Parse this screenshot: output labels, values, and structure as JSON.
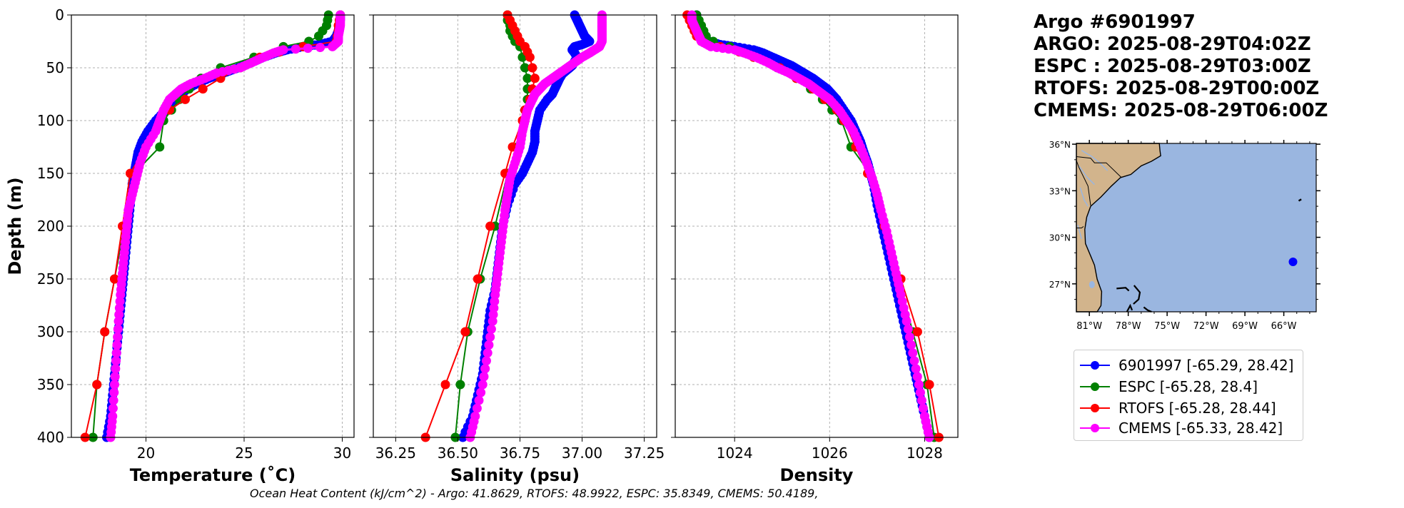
{
  "title_lines": [
    "Argo #6901997",
    "ARGO: 2025-08-29T04:02Z",
    "ESPC : 2025-08-29T03:00Z",
    "RTOFS: 2025-08-29T00:00Z",
    "CMEMS: 2025-08-29T06:00Z"
  ],
  "footer": "Ocean Heat Content (kJ/cm^2) - Argo: 41.8629,  RTOFS: 48.9922,  ESPC: 35.8349,  CMEMS: 50.4189,",
  "colors": {
    "argo": "#0000ff",
    "espc": "#008000",
    "rtofs": "#ff0000",
    "cmems": "#ff00ff",
    "ocean": "#9ab6e0",
    "land": "#d2b48c"
  },
  "legend": [
    {
      "label": "6901997 [-65.29, 28.42]",
      "color": "#0000ff"
    },
    {
      "label": "ESPC [-65.28, 28.4]",
      "color": "#008000"
    },
    {
      "label": "RTOFS [-65.28, 28.44]",
      "color": "#ff0000"
    },
    {
      "label": "CMEMS [-65.33, 28.42]",
      "color": "#ff00ff"
    }
  ],
  "map": {
    "lat_labels": [
      "36°N",
      "33°N",
      "30°N",
      "27°N"
    ],
    "lat_values": [
      36,
      33,
      30,
      27
    ],
    "lon_labels": [
      "81°W",
      "78°W",
      "75°W",
      "72°W",
      "69°W",
      "66°W"
    ],
    "lon_values": [
      -81,
      -78,
      -75,
      -72,
      -69,
      -66
    ],
    "extent": {
      "lon_min": -82,
      "lon_max": -63.5,
      "lat_min": 25.2,
      "lat_max": 36.05
    },
    "float_position": {
      "lon": -65.29,
      "lat": 28.42
    }
  },
  "chart_data": [
    {
      "type": "line",
      "name": "temperature",
      "xlabel": "Temperature (˚C)",
      "ylabel": "Depth (m)",
      "xlim": [
        16.2,
        30.6
      ],
      "ylim": [
        400,
        0
      ],
      "x_ticks": [
        20,
        25,
        30
      ],
      "x_tick_labels": [
        "20",
        "25",
        "30"
      ],
      "y_ticks": [
        0,
        50,
        100,
        150,
        200,
        250,
        300,
        350,
        400
      ],
      "y_tick_labels": [
        "0",
        "50",
        "100",
        "150",
        "200",
        "250",
        "300",
        "350",
        "400"
      ],
      "grid": true,
      "series": [
        {
          "name": "argo",
          "dense": true,
          "depth": [
            0,
            5,
            10,
            15,
            20,
            25,
            28,
            30,
            33,
            36,
            40,
            44,
            48,
            52,
            56,
            60,
            65,
            70,
            75,
            80,
            90,
            100,
            110,
            120,
            130,
            140,
            150,
            160,
            180,
            200,
            220,
            240,
            260,
            280,
            300,
            320,
            340,
            360,
            380,
            400
          ],
          "values": [
            29.9,
            29.9,
            29.85,
            29.8,
            29.7,
            29.5,
            28.8,
            28.0,
            27.2,
            26.6,
            26.0,
            25.5,
            25.0,
            24.4,
            23.8,
            23.2,
            22.6,
            22.1,
            21.8,
            21.5,
            21.0,
            20.5,
            20.1,
            19.8,
            19.6,
            19.5,
            19.4,
            19.3,
            19.2,
            19.1,
            19.0,
            18.9,
            18.8,
            18.7,
            18.6,
            18.5,
            18.4,
            18.3,
            18.2,
            18.0
          ]
        },
        {
          "name": "espc",
          "depth": [
            0,
            5,
            10,
            15,
            20,
            25,
            30,
            40,
            50,
            60,
            70,
            80,
            90,
            100,
            125,
            150,
            200,
            250,
            300,
            350,
            400
          ],
          "values": [
            29.3,
            29.25,
            29.2,
            29.0,
            28.8,
            28.3,
            27.0,
            25.5,
            23.8,
            22.8,
            22.2,
            21.7,
            21.3,
            20.9,
            20.7,
            19.4,
            18.9,
            18.4,
            17.9,
            17.5,
            17.3
          ]
        },
        {
          "name": "rtofs",
          "depth": [
            0,
            5,
            10,
            15,
            20,
            25,
            30,
            35,
            40,
            50,
            60,
            70,
            80,
            90,
            100,
            125,
            150,
            200,
            250,
            300,
            350,
            400
          ],
          "values": [
            29.9,
            29.85,
            29.8,
            29.8,
            29.75,
            29.7,
            28.0,
            26.8,
            25.8,
            24.8,
            23.8,
            22.9,
            22.0,
            21.2,
            20.7,
            20.0,
            19.2,
            18.8,
            18.4,
            17.9,
            17.5,
            16.9
          ]
        },
        {
          "name": "cmems",
          "dense": true,
          "depth": [
            0,
            5,
            10,
            15,
            20,
            25,
            30,
            33,
            36,
            40,
            45,
            50,
            55,
            60,
            65,
            70,
            75,
            80,
            90,
            100,
            110,
            125,
            140,
            155,
            170,
            185,
            205,
            225,
            245,
            265,
            290,
            320,
            350,
            380,
            400
          ],
          "values": [
            29.9,
            29.9,
            29.9,
            29.85,
            29.8,
            29.8,
            29.5,
            27.0,
            26.5,
            26.0,
            25.4,
            24.8,
            23.6,
            23.0,
            22.3,
            21.8,
            21.5,
            21.2,
            20.9,
            20.7,
            20.5,
            20.0,
            19.7,
            19.5,
            19.3,
            19.1,
            19.0,
            18.9,
            18.8,
            18.7,
            18.6,
            18.5,
            18.4,
            18.3,
            18.2
          ]
        }
      ]
    },
    {
      "type": "line",
      "name": "salinity",
      "xlabel": "Salinity (psu)",
      "ylabel": "",
      "xlim": [
        36.16,
        37.3
      ],
      "ylim": [
        400,
        0
      ],
      "x_ticks": [
        36.25,
        36.5,
        36.75,
        37.0,
        37.25
      ],
      "x_tick_labels": [
        "36.25",
        "36.50",
        "36.75",
        "37.00",
        "37.25"
      ],
      "grid": true,
      "series": [
        {
          "name": "argo",
          "dense": true,
          "depth": [
            0,
            5,
            10,
            15,
            20,
            25,
            28,
            30,
            33,
            36,
            40,
            44,
            48,
            52,
            56,
            60,
            65,
            70,
            75,
            80,
            90,
            100,
            110,
            120,
            130,
            140,
            150,
            160,
            180,
            200,
            220,
            240,
            260,
            280,
            300,
            320,
            340,
            360,
            380,
            400
          ],
          "values": [
            36.97,
            36.98,
            36.99,
            37.0,
            37.01,
            37.03,
            37.0,
            36.97,
            36.96,
            36.97,
            36.98,
            36.97,
            36.96,
            36.94,
            36.92,
            36.91,
            36.9,
            36.89,
            36.88,
            36.86,
            36.83,
            36.82,
            36.81,
            36.81,
            36.8,
            36.78,
            36.76,
            36.73,
            36.7,
            36.68,
            36.67,
            36.66,
            36.65,
            36.63,
            36.62,
            36.61,
            36.6,
            36.58,
            36.56,
            36.52
          ]
        },
        {
          "name": "espc",
          "depth": [
            0,
            5,
            10,
            15,
            20,
            25,
            30,
            40,
            50,
            60,
            70,
            80,
            90,
            100,
            125,
            150,
            200,
            250,
            300,
            350,
            400
          ],
          "values": [
            36.7,
            36.7,
            36.71,
            36.71,
            36.72,
            36.73,
            36.75,
            36.76,
            36.77,
            36.78,
            36.78,
            36.78,
            36.77,
            36.77,
            36.74,
            36.7,
            36.65,
            36.59,
            36.54,
            36.51,
            36.49
          ]
        },
        {
          "name": "rtofs",
          "depth": [
            0,
            5,
            10,
            15,
            20,
            25,
            30,
            35,
            40,
            50,
            60,
            70,
            80,
            90,
            100,
            125,
            150,
            200,
            250,
            300,
            350,
            400
          ],
          "values": [
            36.7,
            36.71,
            36.72,
            36.73,
            36.74,
            36.75,
            36.77,
            36.78,
            36.79,
            36.8,
            36.81,
            36.8,
            36.79,
            36.77,
            36.76,
            36.72,
            36.69,
            36.63,
            36.58,
            36.53,
            36.45,
            36.37
          ]
        },
        {
          "name": "cmems",
          "dense": true,
          "depth": [
            0,
            5,
            10,
            15,
            20,
            25,
            30,
            33,
            36,
            40,
            45,
            50,
            55,
            60,
            65,
            70,
            75,
            80,
            90,
            100,
            110,
            125,
            140,
            155,
            170,
            185,
            205,
            225,
            245,
            265,
            290,
            320,
            350,
            380,
            400
          ],
          "values": [
            37.08,
            37.08,
            37.08,
            37.08,
            37.08,
            37.08,
            37.07,
            37.05,
            37.03,
            37.0,
            36.97,
            36.94,
            36.91,
            36.88,
            36.85,
            36.83,
            36.81,
            36.8,
            36.78,
            36.77,
            36.76,
            36.75,
            36.73,
            36.71,
            36.7,
            36.69,
            36.68,
            36.67,
            36.66,
            36.65,
            36.64,
            36.62,
            36.6,
            36.57,
            36.55
          ]
        }
      ]
    },
    {
      "type": "line",
      "name": "density",
      "xlabel": "Density",
      "ylabel": "",
      "xlim": [
        1022.75,
        1028.7
      ],
      "ylim": [
        400,
        0
      ],
      "x_ticks": [
        1024,
        1026,
        1028
      ],
      "x_tick_labels": [
        "1024",
        "1026",
        "1028"
      ],
      "grid": true,
      "series": [
        {
          "name": "argo",
          "dense": true,
          "depth": [
            0,
            5,
            10,
            15,
            20,
            25,
            28,
            30,
            33,
            36,
            40,
            44,
            48,
            52,
            56,
            60,
            65,
            70,
            75,
            80,
            90,
            100,
            110,
            120,
            130,
            140,
            150,
            160,
            180,
            200,
            220,
            240,
            260,
            280,
            300,
            320,
            340,
            360,
            380,
            400
          ],
          "values": [
            1023.2,
            1023.2,
            1023.25,
            1023.3,
            1023.35,
            1023.45,
            1023.7,
            1024.0,
            1024.4,
            1024.6,
            1024.8,
            1025.0,
            1025.2,
            1025.35,
            1025.5,
            1025.65,
            1025.8,
            1025.95,
            1026.05,
            1026.15,
            1026.3,
            1026.45,
            1026.55,
            1026.65,
            1026.72,
            1026.8,
            1026.86,
            1026.92,
            1027.0,
            1027.1,
            1027.2,
            1027.3,
            1027.4,
            1027.5,
            1027.6,
            1027.7,
            1027.8,
            1027.9,
            1028.0,
            1028.1
          ]
        },
        {
          "name": "espc",
          "depth": [
            0,
            5,
            10,
            15,
            20,
            25,
            30,
            40,
            50,
            60,
            70,
            80,
            90,
            100,
            125,
            150,
            200,
            250,
            300,
            350,
            400
          ],
          "values": [
            1023.2,
            1023.25,
            1023.3,
            1023.35,
            1023.4,
            1023.55,
            1023.9,
            1024.4,
            1024.9,
            1025.3,
            1025.6,
            1025.85,
            1026.05,
            1026.25,
            1026.45,
            1026.85,
            1027.15,
            1027.45,
            1027.75,
            1028.05,
            1028.2
          ]
        },
        {
          "name": "rtofs",
          "depth": [
            0,
            5,
            10,
            15,
            20,
            25,
            30,
            35,
            40,
            50,
            60,
            70,
            80,
            90,
            100,
            125,
            150,
            200,
            250,
            300,
            350,
            400
          ],
          "values": [
            1023.0,
            1023.05,
            1023.1,
            1023.15,
            1023.2,
            1023.3,
            1023.7,
            1024.1,
            1024.4,
            1024.95,
            1025.3,
            1025.65,
            1025.9,
            1026.15,
            1026.3,
            1026.55,
            1026.8,
            1027.15,
            1027.5,
            1027.85,
            1028.1,
            1028.3
          ]
        },
        {
          "name": "cmems",
          "dense": true,
          "depth": [
            0,
            5,
            10,
            15,
            20,
            25,
            30,
            33,
            36,
            40,
            45,
            50,
            55,
            60,
            65,
            70,
            75,
            80,
            90,
            100,
            110,
            125,
            140,
            155,
            170,
            185,
            205,
            225,
            245,
            265,
            290,
            320,
            350,
            380,
            400
          ],
          "values": [
            1023.1,
            1023.1,
            1023.15,
            1023.2,
            1023.25,
            1023.3,
            1023.5,
            1024.0,
            1024.2,
            1024.45,
            1024.7,
            1024.9,
            1025.15,
            1025.35,
            1025.55,
            1025.7,
            1025.85,
            1026.0,
            1026.2,
            1026.35,
            1026.5,
            1026.65,
            1026.78,
            1026.9,
            1027.0,
            1027.08,
            1027.2,
            1027.3,
            1027.4,
            1027.5,
            1027.62,
            1027.75,
            1027.88,
            1028.0,
            1028.1
          ]
        }
      ]
    }
  ]
}
